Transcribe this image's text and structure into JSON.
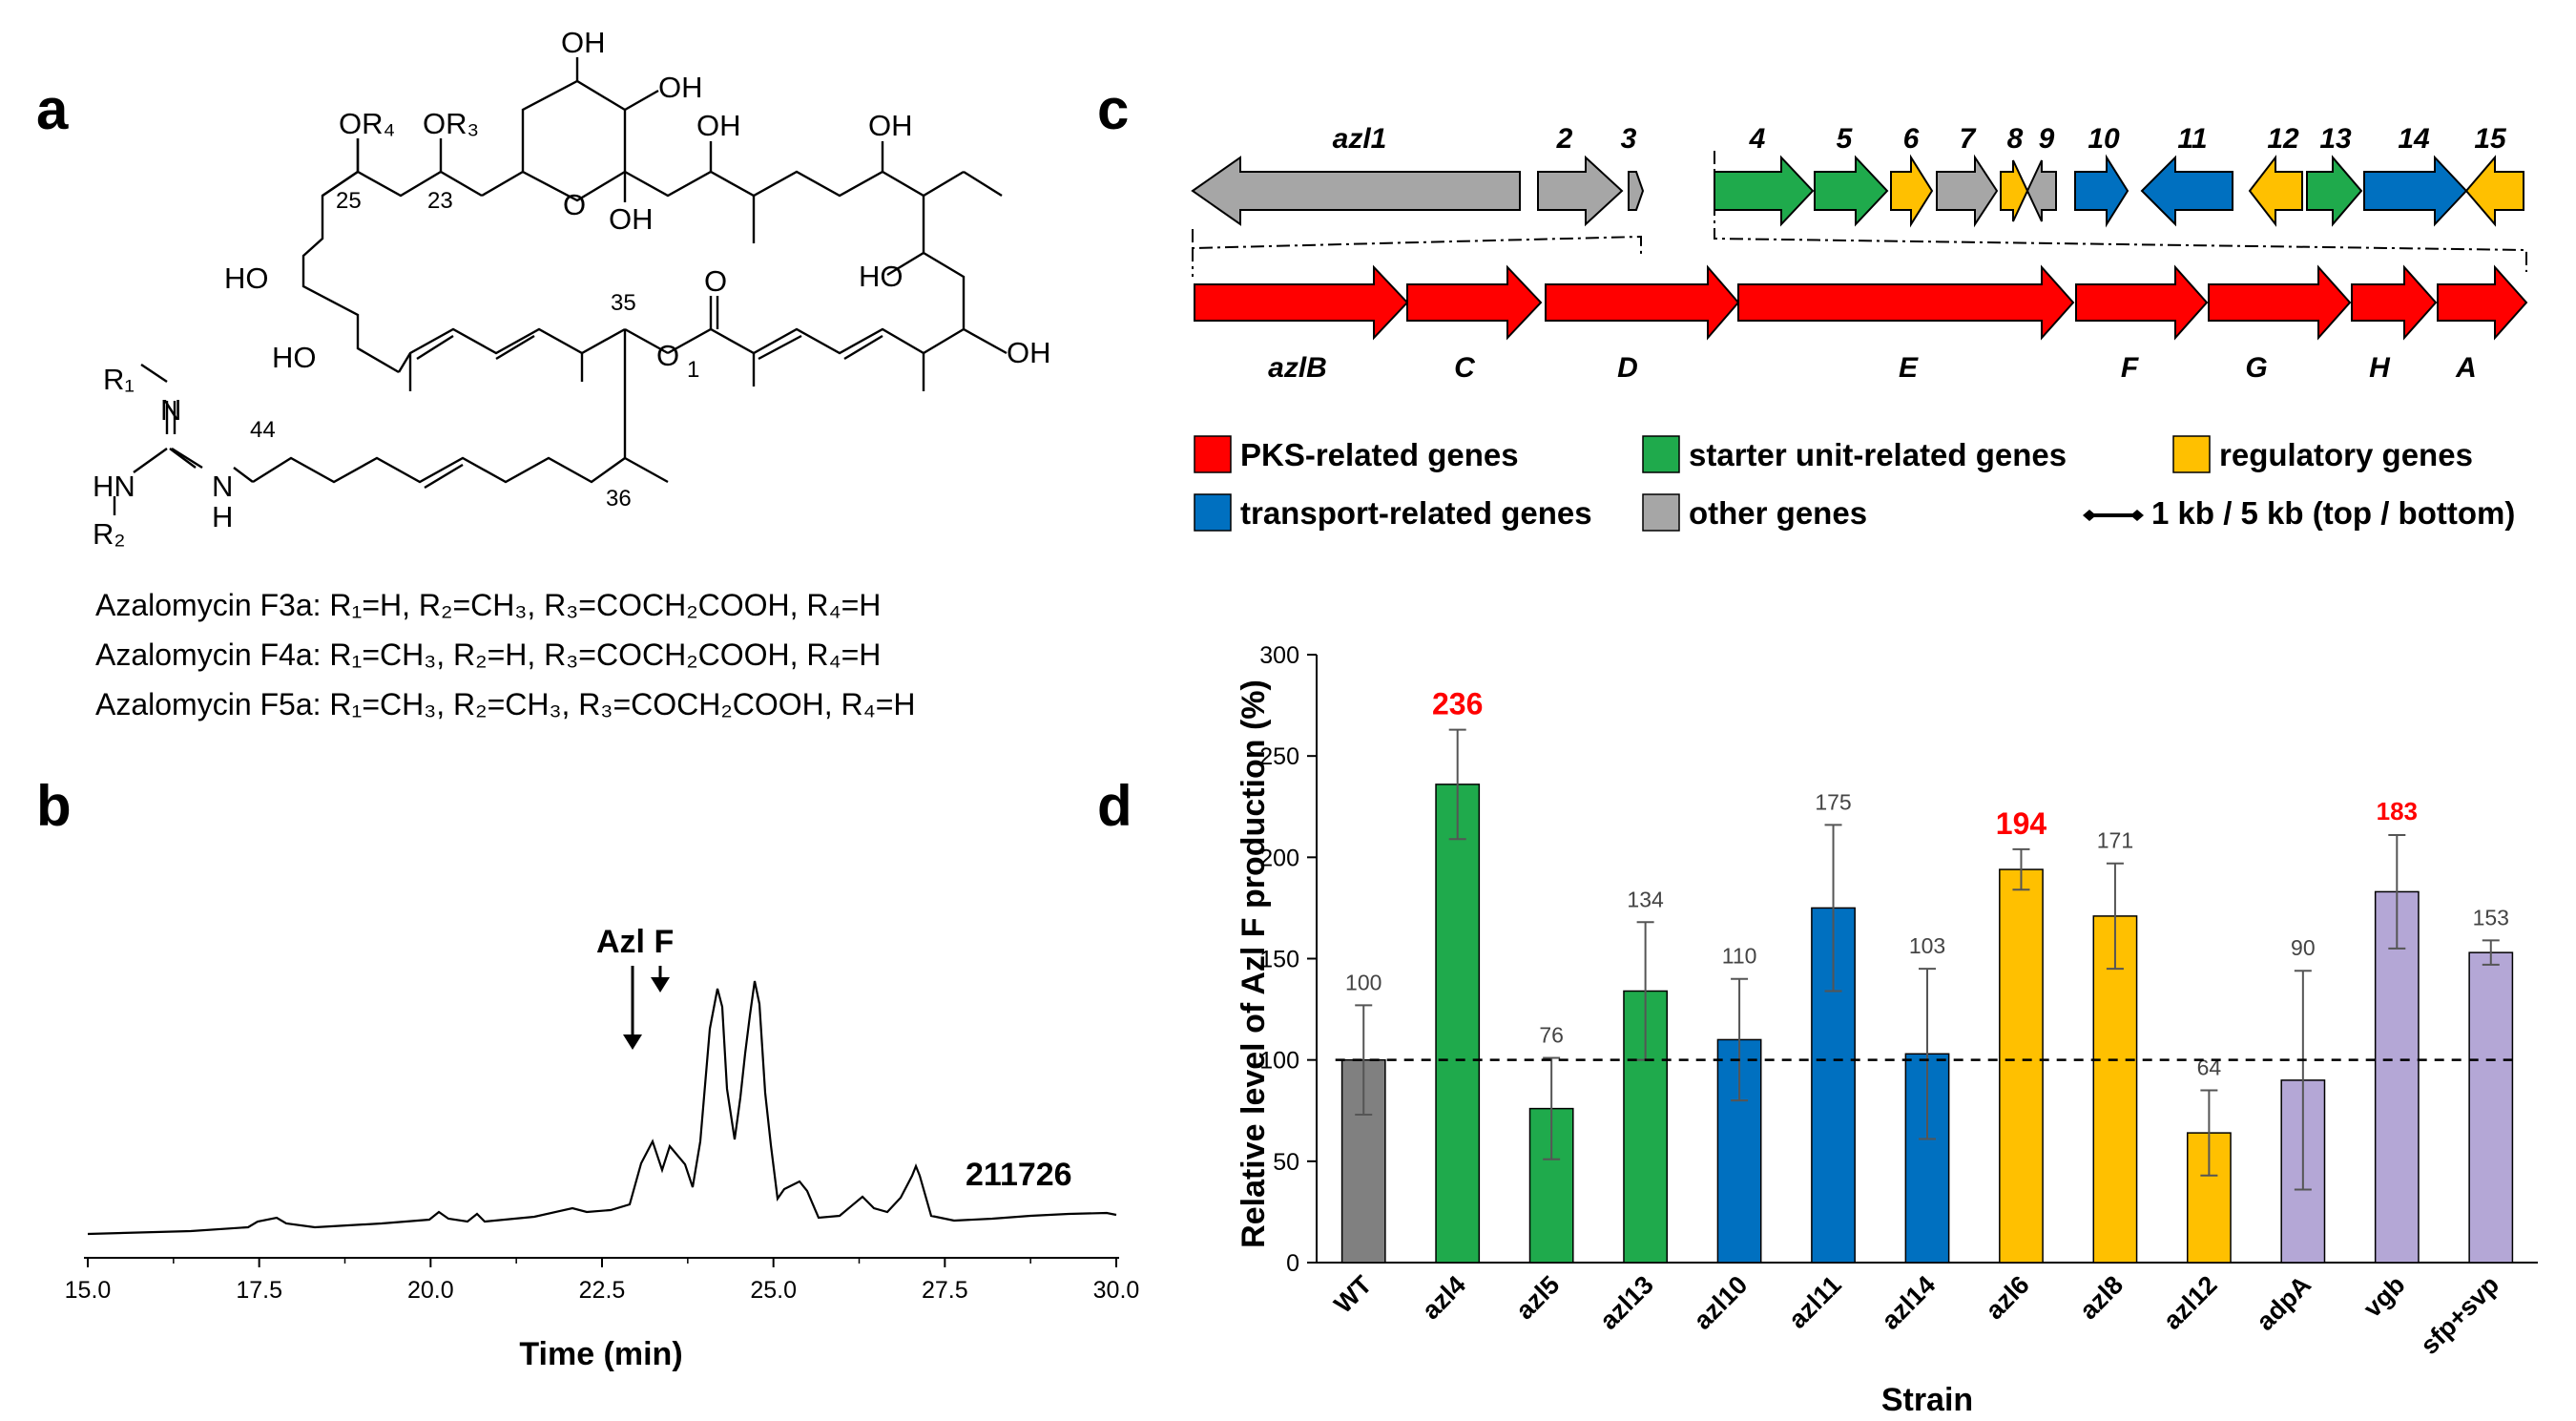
{
  "panels": {
    "a": "a",
    "b": "b",
    "c": "c",
    "d": "d"
  },
  "structure": {
    "substituents": {
      "or4": "OR₄",
      "or3": "OR₃",
      "oh_top": "OH",
      "oh_ring": "OH",
      "oh_a": "OH",
      "oh_b": "OH",
      "ho_left1": "HO",
      "ho_left2": "HO",
      "oh_ring2": "OH",
      "o_ring": "O",
      "o_ester": "O",
      "o_carbonyl": "O",
      "ho_right": "HO",
      "oh_right": "OH",
      "r1": "R₁",
      "n_imine": "N",
      "hn": "HN",
      "r2": "R₂",
      "nh_n": "N",
      "nh_h": "H"
    },
    "numbers": {
      "n25": "25",
      "n23": "23",
      "n35": "35",
      "n1": "1",
      "n44": "44",
      "n36": "36"
    },
    "compounds": [
      "Azalomycin F3a: R₁=H, R₂=CH₃, R₃=COCH₂COOH, R₄=H",
      "Azalomycin F4a: R₁=CH₃, R₂=H, R₃=COCH₂COOH, R₄=H",
      "Azalomycin F5a: R₁=CH₃, R₂=CH₃, R₃=COCH₂COOH, R₄=H"
    ]
  },
  "chromatogram": {
    "peak_label": "Azl F",
    "trace_label": "211726",
    "xlabel": "Time (min)",
    "xticks": [
      "15.0",
      "17.5",
      "20.0",
      "22.5",
      "25.0",
      "27.5",
      "30.0"
    ]
  },
  "gene_cluster": {
    "top_labels": [
      "azl1",
      "2",
      "3",
      "4",
      "5",
      "6",
      "7",
      "8",
      "9",
      "10",
      "11",
      "12",
      "13",
      "14",
      "15"
    ],
    "bottom_labels": [
      "azlB",
      "C",
      "D",
      "E",
      "F",
      "G",
      "H",
      "A"
    ],
    "legend": [
      {
        "label": "PKS-related genes",
        "color": "#ff0000"
      },
      {
        "label": "starter unit-related genes",
        "color": "#1faa4c"
      },
      {
        "label": "regulatory genes",
        "color": "#ffc000"
      },
      {
        "label": "transport-related genes",
        "color": "#0070c0"
      },
      {
        "label": "other genes",
        "color": "#a6a6a6"
      }
    ],
    "scale_label": "1 kb / 5 kb (top / bottom)"
  },
  "chart_data": {
    "type": "bar",
    "categories": [
      "WT",
      "azl4",
      "azl5",
      "azl13",
      "azl10",
      "azl11",
      "azl14",
      "azl6",
      "azl8",
      "azl12",
      "adpA",
      "vgb",
      "sfp+svp"
    ],
    "values": [
      100,
      236,
      76,
      134,
      110,
      175,
      103,
      194,
      171,
      64,
      90,
      183,
      153
    ],
    "errors": [
      27,
      27,
      25,
      34,
      30,
      41,
      42,
      10,
      26,
      21,
      54,
      28,
      6
    ],
    "colors": [
      "#808080",
      "#1faa4c",
      "#1faa4c",
      "#1faa4c",
      "#0070c0",
      "#0070c0",
      "#0070c0",
      "#ffc000",
      "#ffc000",
      "#ffc000",
      "#b4a7d6",
      "#b4a7d6",
      "#b4a7d6"
    ],
    "value_labels": [
      "100",
      "236",
      "76",
      "134",
      "110",
      "175",
      "103",
      "194",
      "171",
      "64",
      "90",
      "183",
      "153"
    ],
    "highlight": [
      false,
      true,
      false,
      false,
      false,
      false,
      false,
      true,
      false,
      false,
      false,
      true,
      false
    ],
    "highlight_color": "#ff0000",
    "xlabel": "Strain",
    "ylabel": "Relative level of Azl F production (%)",
    "yticks": [
      "0",
      "50",
      "100",
      "150",
      "200",
      "250",
      "300"
    ],
    "ylim": [
      0,
      300
    ],
    "reference_line": 100,
    "grid": false
  }
}
